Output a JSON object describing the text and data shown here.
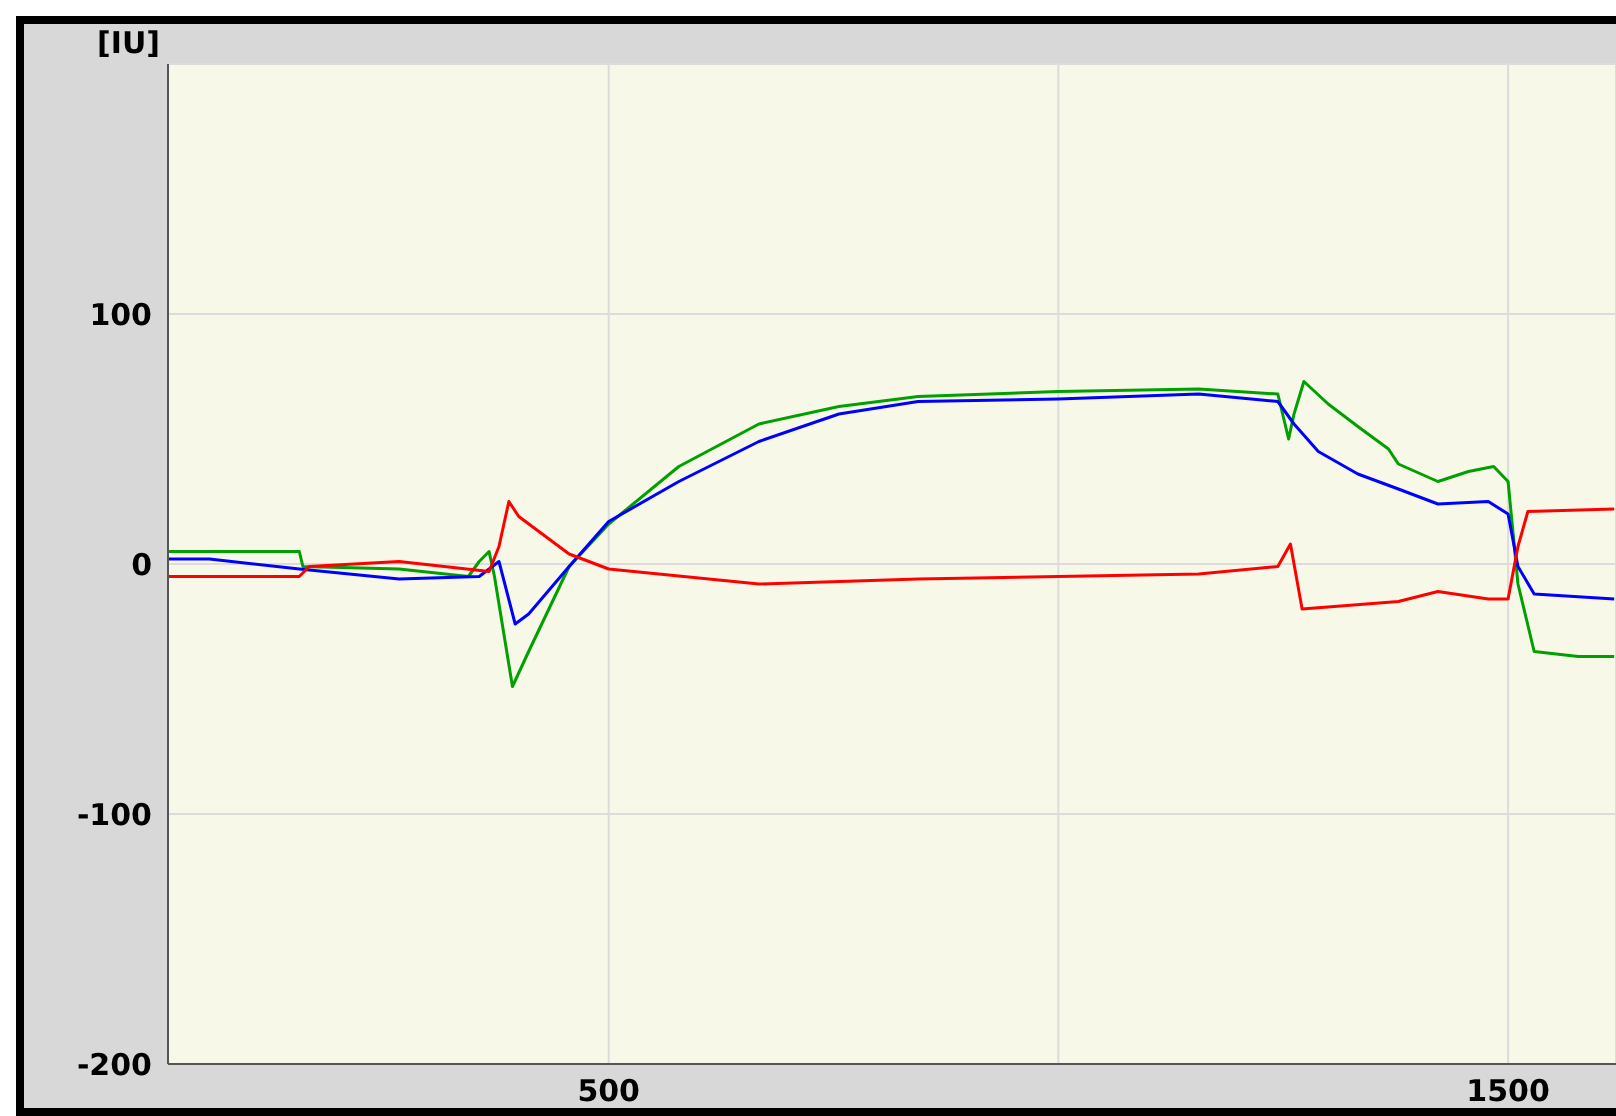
{
  "chart_data": {
    "type": "line",
    "ylabel": "[IU]",
    "xlim": [
      10,
      1620
    ],
    "ylim": [
      -200,
      200
    ],
    "xticks": [
      500,
      {
        "value": 1000,
        "label": null
      },
      1500
    ],
    "yticks": [
      -200,
      -100,
      0,
      100
    ],
    "grid": true,
    "marker": "none",
    "line_style": "solid",
    "series": [
      {
        "color": "#00a000",
        "x": [
          10,
          156,
          160,
          267,
          344,
          356,
          367,
          373,
          393,
          411,
          456,
          500,
          578,
          667,
          756,
          844,
          1000,
          1156,
          1244,
          1256,
          1262,
          1273,
          1300,
          1333,
          1367,
          1378,
          1422,
          1456,
          1484,
          1500,
          1511,
          1529,
          1578,
          1618
        ],
        "values": [
          5,
          5,
          -1,
          -2,
          -5,
          1,
          5,
          -5,
          -49,
          -35,
          -1,
          16,
          39,
          56,
          63,
          67,
          69,
          70,
          68,
          50,
          60,
          73,
          64,
          55,
          46,
          40,
          33,
          37,
          39,
          33,
          -8,
          -35,
          -37,
          -37
        ]
      },
      {
        "color": "#0000ff",
        "x": [
          10,
          56,
          156,
          267,
          356,
          378,
          396,
          411,
          456,
          500,
          578,
          667,
          756,
          844,
          1000,
          1156,
          1244,
          1262,
          1289,
          1333,
          1378,
          1422,
          1478,
          1500,
          1511,
          1529,
          1618
        ],
        "values": [
          2,
          2,
          -2,
          -6,
          -5,
          1,
          -24,
          -20,
          -1,
          17,
          33,
          49,
          60,
          65,
          66,
          68,
          65,
          56,
          45,
          36,
          30,
          24,
          25,
          20,
          -1,
          -12,
          -14
        ]
      },
      {
        "color": "#ff0000",
        "x": [
          10,
          156,
          167,
          267,
          367,
          378,
          389,
          400,
          456,
          500,
          667,
          844,
          1000,
          1156,
          1244,
          1258,
          1271,
          1378,
          1422,
          1478,
          1500,
          1511,
          1522,
          1618
        ],
        "values": [
          -5,
          -5,
          -1,
          1,
          -3,
          7,
          25,
          19,
          4,
          -2,
          -8,
          -6,
          -5,
          -4,
          -1,
          8,
          -18,
          -15,
          -11,
          -14,
          -14,
          7,
          21,
          22
        ]
      }
    ]
  }
}
